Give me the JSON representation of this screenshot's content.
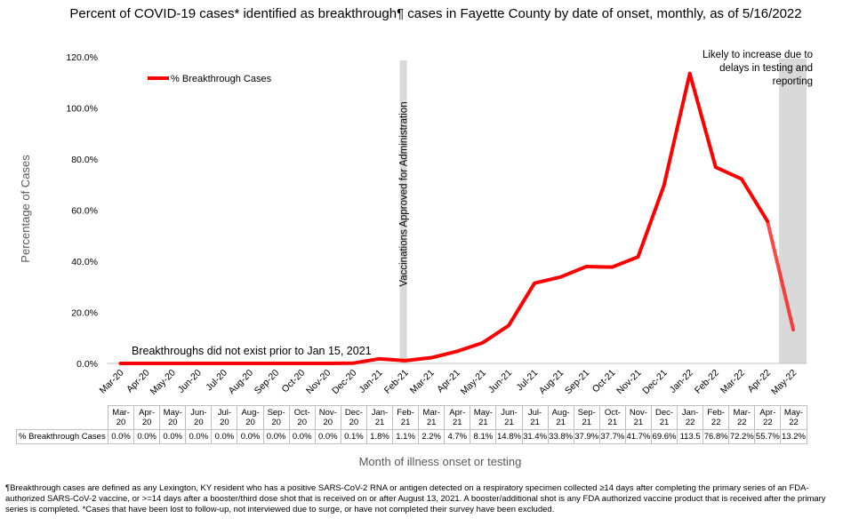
{
  "chart_data": {
    "type": "line",
    "title": "Percent of COVID-19 cases* identified as breakthrough¶ cases in Fayette County by date of onset, monthly, as of 5/16/2022",
    "xlabel": "Month of illness onset or testing",
    "ylabel": "Percentage of Cases",
    "ylim": [
      0,
      120
    ],
    "yticks": [
      "0.0%",
      "20.0%",
      "40.0%",
      "60.0%",
      "80.0%",
      "100.0%",
      "120.0%"
    ],
    "grid": false,
    "legend": "top-left",
    "categories": [
      "Mar-20",
      "Apr-20",
      "May-20",
      "Jun-20",
      "Jul-20",
      "Aug-20",
      "Sep-20",
      "Oct-20",
      "Nov-20",
      "Dec-20",
      "Jan-21",
      "Feb-21",
      "Mar-21",
      "Apr-21",
      "May-21",
      "Jun-21",
      "Jul-21",
      "Aug-21",
      "Sep-21",
      "Oct-21",
      "Nov-21",
      "Dec-21",
      "Jan-22",
      "Feb-22",
      "Mar-22",
      "Apr-22",
      "May-22"
    ],
    "table_categories": [
      "Mar-\n20",
      "Apr-\n20",
      "May-\n20",
      "Jun-\n20",
      "Jul-\n20",
      "Aug-\n20",
      "Sep-\n20",
      "Oct-\n20",
      "Nov-\n20",
      "Dec-\n20",
      "Jan-\n21",
      "Feb-\n21",
      "Mar-\n21",
      "Apr-\n21",
      "May-\n21",
      "Jun-\n21",
      "Jul-\n21",
      "Aug-\n21",
      "Sep-\n21",
      "Oct-\n21",
      "Nov-\n21",
      "Dec-\n21",
      "Jan-\n22",
      "Feb-\n22",
      "Mar-\n22",
      "Apr-\n22",
      "May-\n22"
    ],
    "series": [
      {
        "name": "% Breakthrough Cases",
        "color": "#ff0000",
        "values": [
          0.0,
          0.0,
          0.0,
          0.0,
          0.0,
          0.0,
          0.0,
          0.0,
          0.0,
          0.1,
          1.8,
          1.1,
          2.2,
          4.7,
          8.1,
          14.8,
          31.4,
          33.8,
          37.9,
          37.7,
          41.7,
          69.6,
          113.5,
          76.8,
          72.2,
          55.7,
          13.2
        ],
        "labels": [
          "0.0%",
          "0.0%",
          "0.0%",
          "0.0%",
          "0.0%",
          "0.0%",
          "0.0%",
          "0.0%",
          "0.0%",
          "0.1%",
          "1.8%",
          "1.1%",
          "2.2%",
          "4.7%",
          "8.1%",
          "14.8%",
          "31.4%",
          "33.8%",
          "37.9%",
          "37.7%",
          "41.7%",
          "69.6%",
          "113.5",
          "76.8%",
          "72.2%",
          "55.7%",
          "13.2%"
        ]
      }
    ],
    "annotations": {
      "vaccination_label": "Vaccinations Approved for Administration",
      "vaccination_at": "Feb-21",
      "pre_note": "Breakthroughs did not exist prior to Jan 15, 2021",
      "shaded_at": "May-22",
      "shaded_note_lines": [
        "Likely to increase due to",
        "delays in testing and",
        "reporting"
      ]
    },
    "colors": {
      "line": "#ff0000",
      "band": "#d9d9d9"
    }
  },
  "footnote": "¶Breakthrough cases are defined as any Lexington, KY resident who has a positive SARS-CoV-2 RNA or antigen detected on a respiratory specimen collected ≥14 days after completing the primary series of an FDA-authorized SARS-CoV-2 vaccine, or >=14 days after a booster/third dose shot that is received on or after August 13, 2021.  A booster/additional shot is any FDA authorized vaccine product that is received after the primary series is completed.  *Cases that have been lost to follow-up, not interviewed due to surge, or have not completed their survey have been excluded."
}
